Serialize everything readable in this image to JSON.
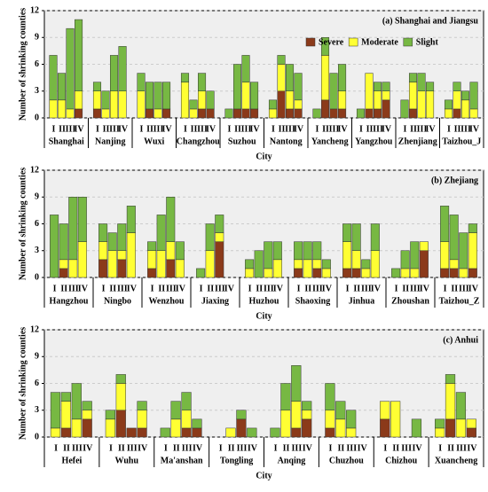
{
  "chart_data": [
    {
      "type": "stacked-bar",
      "title": "(a) Shanghai and Jiangsu",
      "ylabel": "Number of shrinking counties",
      "xlabel": "City",
      "groups": [
        "Shanghai",
        "Nanjing",
        "Wuxi",
        "Changzhou",
        "Suzhou",
        "Nantong",
        "Yancheng",
        "Yangzhou",
        "Zhenjiang",
        "Taizhou_J"
      ],
      "periods": [
        "I",
        "II",
        "III",
        "IV"
      ],
      "ylim": [
        0,
        12
      ],
      "yticks": [
        0,
        3,
        6,
        9,
        12
      ],
      "grid": true,
      "legend": "top-center",
      "series": [
        {
          "name": "Severe",
          "color": "#8b3a1a",
          "values": [
            0,
            0,
            0,
            1,
            1,
            0,
            0,
            0,
            0,
            1,
            0,
            1,
            0,
            0,
            1,
            1,
            0,
            1,
            1,
            1,
            0,
            3,
            1,
            1,
            0,
            2,
            1,
            1,
            0,
            1,
            1,
            2,
            0,
            1,
            0,
            0,
            0,
            1,
            0,
            0
          ]
        },
        {
          "name": "Moderate",
          "color": "#ffff33",
          "values": [
            2,
            2,
            1,
            2,
            2,
            1,
            3,
            3,
            3,
            0,
            1,
            0,
            4,
            1,
            2,
            0,
            0,
            0,
            3,
            0,
            1,
            3,
            2,
            1,
            0,
            5,
            0,
            2,
            0,
            4,
            2,
            1,
            0,
            3,
            3,
            3,
            1,
            2,
            2,
            1
          ]
        },
        {
          "name": "Slight",
          "color": "#77b843",
          "values": [
            5,
            3,
            9,
            8,
            1,
            2,
            4,
            5,
            2,
            3,
            3,
            3,
            1,
            1,
            2,
            2,
            1,
            5,
            3,
            3,
            1,
            1,
            3,
            3,
            1,
            2,
            4,
            3,
            1,
            0,
            1,
            1,
            2,
            1,
            2,
            1,
            1,
            1,
            1,
            3
          ]
        }
      ]
    },
    {
      "type": "stacked-bar",
      "title": "(b) Zhejiang",
      "ylabel": "Number of shrinking counties",
      "xlabel": "City",
      "groups": [
        "Hangzhou",
        "Ningbo",
        "Wenzhou",
        "Jiaxing",
        "Huzhou",
        "Shaoxing",
        "Jinhua",
        "Zhoushan",
        "Taizhou_Z"
      ],
      "periods": [
        "I",
        "II",
        "III",
        "IV"
      ],
      "ylim": [
        0,
        12
      ],
      "yticks": [
        0,
        3,
        6,
        9,
        12
      ],
      "grid": true,
      "series": [
        {
          "color": "#8b3a1a",
          "values": [
            0,
            1,
            0,
            0,
            2,
            0,
            2,
            0,
            1,
            0,
            2,
            0,
            0,
            0,
            4,
            0,
            0,
            0,
            0,
            0,
            1,
            0,
            1,
            0,
            1,
            1,
            0,
            0,
            0,
            0,
            0,
            3,
            1,
            1,
            0,
            1
          ]
        },
        {
          "color": "#ffff33",
          "values": [
            0,
            1,
            2,
            4,
            2,
            3,
            1,
            5,
            2,
            3,
            2,
            2,
            0,
            3,
            1,
            0,
            1,
            0,
            1,
            2,
            1,
            2,
            1,
            1,
            3,
            2,
            1,
            3,
            0,
            1,
            1,
            1,
            3,
            1,
            1,
            4
          ]
        },
        {
          "color": "#77b843",
          "values": [
            7,
            4,
            7,
            5,
            2,
            2,
            3,
            3,
            1,
            4,
            5,
            2,
            1,
            3,
            2,
            0,
            1,
            3,
            3,
            2,
            2,
            2,
            2,
            1,
            2,
            3,
            1,
            3,
            1,
            2,
            3,
            0,
            4,
            5,
            4,
            1
          ]
        }
      ]
    },
    {
      "type": "stacked-bar",
      "title": "(c) Anhui",
      "ylabel": "Number of shrinking counties",
      "xlabel": "City",
      "groups": [
        "Hefei",
        "Wuhu",
        "Ma'anshan",
        "Tongling",
        "Anqing",
        "Chuzhou",
        "Chizhou",
        "Xuancheng"
      ],
      "periods": [
        "I",
        "II",
        "III",
        "IV"
      ],
      "ylim": [
        0,
        12
      ],
      "yticks": [
        0,
        3,
        6,
        9,
        12
      ],
      "grid": true,
      "series": [
        {
          "color": "#8b3a1a",
          "values": [
            0,
            1,
            0,
            2,
            0,
            3,
            1,
            1,
            0,
            0,
            1,
            1,
            0,
            0,
            2,
            0,
            0,
            0,
            1,
            2,
            1,
            0,
            0,
            0,
            2,
            0,
            0,
            0,
            0,
            2,
            0,
            1
          ]
        },
        {
          "color": "#ffff33",
          "values": [
            1,
            3,
            2,
            1,
            2,
            3,
            0,
            2,
            0,
            2,
            2,
            0,
            0,
            1,
            0,
            0,
            0,
            3,
            3,
            1,
            2,
            2,
            1,
            0,
            2,
            4,
            0,
            0,
            1,
            4,
            2,
            1
          ]
        },
        {
          "color": "#77b843",
          "values": [
            4,
            1,
            4,
            1,
            1,
            1,
            0,
            1,
            1,
            2,
            2,
            1,
            0,
            0,
            1,
            1,
            1,
            3,
            4,
            1,
            3,
            2,
            2,
            0,
            0,
            0,
            0,
            2,
            1,
            1,
            3,
            0
          ]
        }
      ]
    }
  ]
}
